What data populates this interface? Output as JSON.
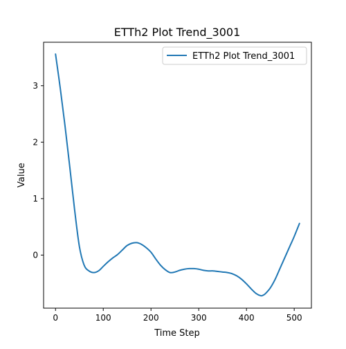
{
  "chart_data": {
    "type": "line",
    "title": "ETTh2 Plot Trend_3001",
    "xlabel": "Time Step",
    "ylabel": "Value",
    "xlim": [
      -25,
      536
    ],
    "ylim": [
      -0.94,
      3.77
    ],
    "xticks": [
      0,
      100,
      200,
      300,
      400,
      500
    ],
    "yticks": [
      0,
      1,
      2,
      3
    ],
    "legend_position": "top-right",
    "grid": false,
    "series": [
      {
        "name": "ETTh2 Plot Trend_3001",
        "color": "#1f77b4",
        "x": [
          0,
          10,
          20,
          30,
          40,
          50,
          60,
          70,
          80,
          90,
          100,
          110,
          120,
          130,
          140,
          150,
          160,
          170,
          180,
          190,
          200,
          210,
          220,
          230,
          240,
          250,
          260,
          270,
          280,
          290,
          300,
          310,
          320,
          330,
          340,
          350,
          360,
          370,
          380,
          390,
          400,
          410,
          420,
          430,
          435,
          440,
          450,
          460,
          470,
          480,
          490,
          500,
          511
        ],
        "y": [
          3.56,
          2.95,
          2.28,
          1.55,
          0.8,
          0.15,
          -0.18,
          -0.28,
          -0.31,
          -0.28,
          -0.2,
          -0.12,
          -0.05,
          0.01,
          0.09,
          0.17,
          0.21,
          0.22,
          0.19,
          0.13,
          0.05,
          -0.07,
          -0.18,
          -0.26,
          -0.31,
          -0.3,
          -0.27,
          -0.25,
          -0.24,
          -0.24,
          -0.25,
          -0.27,
          -0.28,
          -0.28,
          -0.29,
          -0.3,
          -0.31,
          -0.33,
          -0.37,
          -0.43,
          -0.51,
          -0.6,
          -0.68,
          -0.72,
          -0.71,
          -0.68,
          -0.58,
          -0.43,
          -0.24,
          -0.05,
          0.14,
          0.33,
          0.56
        ]
      }
    ]
  }
}
